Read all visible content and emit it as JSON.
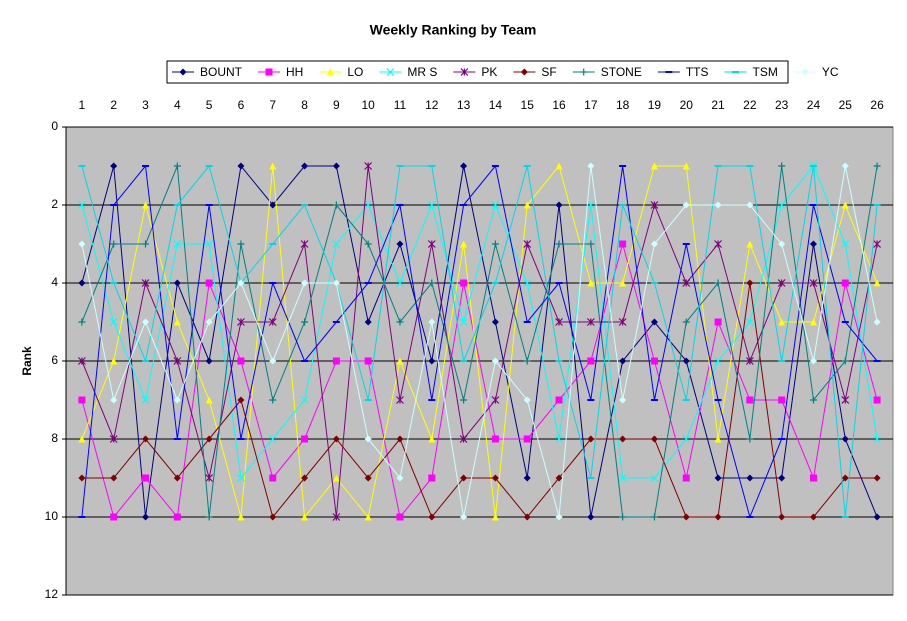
{
  "chart_data": {
    "type": "line",
    "title": "Weekly Ranking by Team",
    "y_label": "Rank",
    "categories": [
      1,
      2,
      3,
      4,
      5,
      6,
      7,
      8,
      9,
      10,
      11,
      12,
      13,
      14,
      15,
      16,
      17,
      18,
      19,
      20,
      21,
      22,
      23,
      24,
      25,
      26
    ],
    "ylim": [
      0,
      12
    ],
    "yticks": [
      0,
      2,
      4,
      6,
      8,
      10,
      12
    ],
    "y_inverted": true,
    "grid": true,
    "legend": "top",
    "series": [
      {
        "name": "BOUNT",
        "color": "#000080",
        "marker": "diamond",
        "values": [
          4,
          1,
          10,
          4,
          6,
          1,
          2,
          1,
          1,
          5,
          3,
          6,
          1,
          5,
          9,
          2,
          10,
          6,
          5,
          6,
          9,
          9,
          9,
          3,
          8,
          10
        ]
      },
      {
        "name": "HH",
        "color": "#ff00ff",
        "marker": "square",
        "values": [
          7,
          10,
          9,
          10,
          4,
          6,
          9,
          8,
          6,
          6,
          10,
          9,
          4,
          8,
          8,
          7,
          6,
          3,
          6,
          9,
          5,
          7,
          7,
          9,
          4,
          7
        ]
      },
      {
        "name": "LO",
        "color": "#ffff00",
        "marker": "triangle",
        "values": [
          8,
          6,
          2,
          5,
          7,
          10,
          1,
          10,
          9,
          10,
          6,
          8,
          3,
          10,
          2,
          1,
          4,
          4,
          1,
          1,
          8,
          3,
          5,
          5,
          2,
          4
        ]
      },
      {
        "name": "MR S",
        "color": "#00ffff",
        "marker": "x",
        "values": [
          2,
          5,
          7,
          3,
          3,
          9,
          8,
          7,
          3,
          2,
          4,
          2,
          5,
          2,
          4,
          8,
          2,
          9,
          9,
          8,
          6,
          5,
          2,
          1,
          3,
          8
        ]
      },
      {
        "name": "PK",
        "color": "#800080",
        "marker": "star",
        "values": [
          6,
          8,
          4,
          6,
          9,
          5,
          5,
          3,
          10,
          1,
          7,
          3,
          8,
          7,
          3,
          5,
          5,
          5,
          2,
          4,
          3,
          6,
          4,
          4,
          7,
          3
        ]
      },
      {
        "name": "SF",
        "color": "#800000",
        "marker": "diamond",
        "values": [
          9,
          9,
          8,
          9,
          8,
          7,
          10,
          9,
          8,
          9,
          8,
          10,
          9,
          9,
          10,
          9,
          8,
          8,
          8,
          10,
          10,
          4,
          10,
          10,
          9,
          9
        ]
      },
      {
        "name": "STONE",
        "color": "#008080",
        "marker": "plus",
        "values": [
          5,
          3,
          3,
          1,
          10,
          3,
          7,
          5,
          2,
          3,
          5,
          4,
          7,
          3,
          6,
          3,
          3,
          10,
          10,
          5,
          4,
          8,
          1,
          7,
          6,
          1
        ]
      },
      {
        "name": "TTS",
        "color": "#0000ff",
        "marker": "dash",
        "values": [
          10,
          2,
          1,
          8,
          2,
          8,
          4,
          6,
          5,
          4,
          2,
          7,
          2,
          1,
          5,
          4,
          7,
          1,
          7,
          3,
          7,
          10,
          8,
          2,
          5,
          6
        ]
      },
      {
        "name": "TSM",
        "color": "#00d8e8",
        "marker": "dash",
        "values": [
          1,
          4,
          6,
          2,
          1,
          4,
          3,
          2,
          4,
          7,
          1,
          1,
          6,
          4,
          1,
          6,
          9,
          2,
          4,
          7,
          1,
          1,
          6,
          1,
          10,
          2
        ]
      },
      {
        "name": "YC",
        "color": "#ccffff",
        "marker": "diamond",
        "values": [
          3,
          7,
          5,
          7,
          5,
          4,
          6,
          4,
          4,
          8,
          9,
          5,
          10,
          6,
          7,
          10,
          1,
          7,
          3,
          2,
          2,
          2,
          3,
          6,
          1,
          5
        ]
      }
    ]
  }
}
